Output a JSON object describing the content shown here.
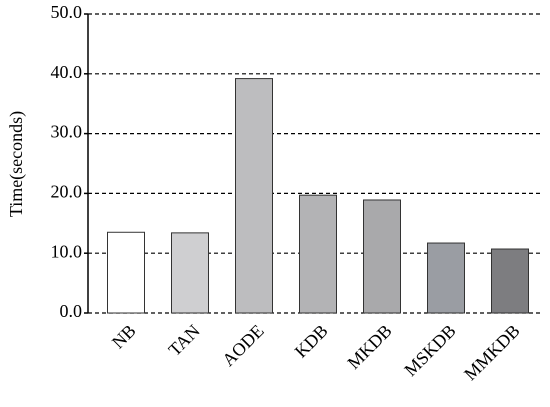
{
  "chart_data": {
    "type": "bar",
    "y_label": "Time(seconds)",
    "categories": [
      "NB",
      "TAN",
      "AODE",
      "KDB",
      "MKDB",
      "MSKDB",
      "MMKDB"
    ],
    "values": [
      13.5,
      13.4,
      39.2,
      19.7,
      18.9,
      11.7,
      10.7
    ],
    "colors": [
      "#ffffff",
      "#cfcfd1",
      "#bdbdbf",
      "#b3b3b5",
      "#a9a9ab",
      "#9a9da3",
      "#7d7d80"
    ],
    "ylim": [
      0,
      50
    ],
    "yticks": [
      {
        "value": 0,
        "label": "0.0"
      },
      {
        "value": 10,
        "label": "10.0"
      },
      {
        "value": 20,
        "label": "20.0"
      },
      {
        "value": 30,
        "label": "30.0"
      },
      {
        "value": 40,
        "label": "40.0"
      },
      {
        "value": 50,
        "label": "50.0"
      }
    ],
    "grid": true
  }
}
